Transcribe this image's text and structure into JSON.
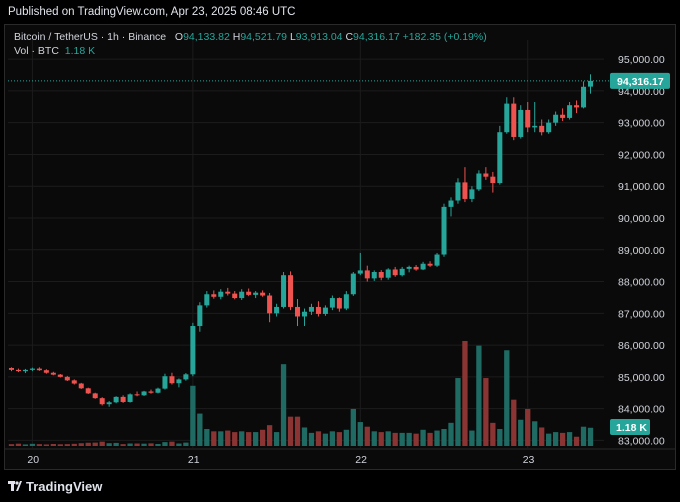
{
  "header": {
    "published": "Published on TradingView.com, Apr 23, 2025 08:46 UTC"
  },
  "legend": {
    "symbol": "Bitcoin / TetherUS · 1h · Binance",
    "o_label": "O",
    "o_value": "94,133.82",
    "h_label": "H",
    "h_value": "94,521.79",
    "l_label": "L",
    "l_value": "93,913.04",
    "c_label": "C",
    "c_value": "94,316.17",
    "change": "+182.35 (+0.19%)",
    "vol_label": "Vol · BTC",
    "vol_value": "1.18 K"
  },
  "footer": {
    "brand": "TradingView"
  },
  "colors": {
    "up": "#26a69a",
    "down": "#ef5350",
    "up_vol": "#1f6b63",
    "down_vol": "#8a3433",
    "bg": "#0a0a0a",
    "grid": "#1c1c1c"
  },
  "chart_data": {
    "type": "candlestick",
    "price_labels": [
      "95,000.00",
      "94,000.00",
      "93,000.00",
      "92,000.00",
      "91,000.00",
      "90,000.00",
      "89,000.00",
      "88,000.00",
      "87,000.00",
      "86,000.00",
      "85,000.00",
      "84,000.00",
      "83,000.00"
    ],
    "price_values": [
      95000,
      94000,
      93000,
      92000,
      91000,
      90000,
      89000,
      88000,
      87000,
      86000,
      85000,
      84000,
      83000
    ],
    "ylim": [
      82950,
      95350
    ],
    "x_labels": [
      "20",
      "21",
      "22",
      "23"
    ],
    "last_price_label": "94,316.17",
    "last_price": 94316.17,
    "last_volume_label": "1.18 K",
    "candles": [
      [
        85280,
        85300,
        85180,
        85220
      ],
      [
        85220,
        85260,
        85150,
        85180
      ],
      [
        85180,
        85250,
        85120,
        85220
      ],
      [
        85220,
        85290,
        85180,
        85260
      ],
      [
        85260,
        85300,
        85190,
        85210
      ],
      [
        85210,
        85240,
        85100,
        85130
      ],
      [
        85130,
        85160,
        85050,
        85070
      ],
      [
        85070,
        85090,
        84980,
        85000
      ],
      [
        85000,
        85030,
        84870,
        84890
      ],
      [
        84890,
        84920,
        84760,
        84790
      ],
      [
        84790,
        84810,
        84620,
        84640
      ],
      [
        84640,
        84660,
        84460,
        84480
      ],
      [
        84480,
        84500,
        84310,
        84330
      ],
      [
        84330,
        84360,
        84100,
        84140
      ],
      [
        84140,
        84240,
        84060,
        84200
      ],
      [
        84200,
        84390,
        84170,
        84370
      ],
      [
        84370,
        84420,
        84180,
        84210
      ],
      [
        84210,
        84480,
        84190,
        84450
      ],
      [
        84450,
        84540,
        84390,
        84420
      ],
      [
        84420,
        84560,
        84400,
        84540
      ],
      [
        84540,
        84600,
        84470,
        84500
      ],
      [
        84500,
        84660,
        84480,
        84630
      ],
      [
        84630,
        85100,
        84600,
        85020
      ],
      [
        85020,
        85130,
        84760,
        84800
      ],
      [
        84800,
        84950,
        84670,
        84920
      ],
      [
        84920,
        85120,
        84880,
        85080
      ],
      [
        85080,
        86700,
        85020,
        86600
      ],
      [
        86600,
        87350,
        86420,
        87250
      ],
      [
        87250,
        87700,
        87180,
        87600
      ],
      [
        87600,
        87720,
        87460,
        87520
      ],
      [
        87520,
        87760,
        87440,
        87680
      ],
      [
        87680,
        87800,
        87560,
        87620
      ],
      [
        87620,
        87700,
        87440,
        87480
      ],
      [
        87480,
        87760,
        87420,
        87680
      ],
      [
        87680,
        87780,
        87540,
        87580
      ],
      [
        87580,
        87700,
        87480,
        87650
      ],
      [
        87650,
        87720,
        87520,
        87560
      ],
      [
        87560,
        87640,
        86720,
        87000
      ],
      [
        87000,
        87300,
        86900,
        87200
      ],
      [
        87200,
        88300,
        87150,
        88200
      ],
      [
        88200,
        88320,
        87100,
        87200
      ],
      [
        87200,
        87450,
        86600,
        86900
      ],
      [
        86900,
        87150,
        86600,
        87050
      ],
      [
        87050,
        87300,
        86950,
        87200
      ],
      [
        87200,
        87380,
        86900,
        86980
      ],
      [
        86980,
        87250,
        86920,
        87180
      ],
      [
        87180,
        87560,
        87100,
        87480
      ],
      [
        87480,
        87500,
        87050,
        87150
      ],
      [
        87150,
        87700,
        87100,
        87600
      ],
      [
        87600,
        88300,
        87550,
        88250
      ],
      [
        88250,
        88900,
        88200,
        88350
      ],
      [
        88350,
        88500,
        88000,
        88100
      ],
      [
        88100,
        88350,
        88020,
        88300
      ],
      [
        88300,
        88360,
        88040,
        88120
      ],
      [
        88120,
        88420,
        88060,
        88380
      ],
      [
        88380,
        88460,
        88150,
        88200
      ],
      [
        88200,
        88460,
        88160,
        88400
      ],
      [
        88400,
        88500,
        88290,
        88460
      ],
      [
        88460,
        88520,
        88340,
        88380
      ],
      [
        88380,
        88620,
        88360,
        88560
      ],
      [
        88560,
        88640,
        88460,
        88500
      ],
      [
        88500,
        88900,
        88460,
        88850
      ],
      [
        88850,
        90450,
        88780,
        90350
      ],
      [
        90350,
        90650,
        90050,
        90550
      ],
      [
        90550,
        91250,
        90450,
        91120
      ],
      [
        91120,
        91600,
        90500,
        90600
      ],
      [
        90600,
        91000,
        90500,
        90900
      ],
      [
        90900,
        91500,
        90850,
        91400
      ],
      [
        91400,
        91600,
        91200,
        91300
      ],
      [
        91300,
        91450,
        90800,
        91100
      ],
      [
        91100,
        92900,
        91050,
        92700
      ],
      [
        92700,
        93800,
        92650,
        93600
      ],
      [
        93600,
        93800,
        92450,
        92550
      ],
      [
        92550,
        93550,
        92500,
        93400
      ],
      [
        93400,
        93650,
        92700,
        92850
      ],
      [
        92850,
        93650,
        92700,
        92900
      ],
      [
        92900,
        93100,
        92600,
        92700
      ],
      [
        92700,
        93100,
        92650,
        93000
      ],
      [
        93000,
        93350,
        92900,
        93250
      ],
      [
        93250,
        93450,
        93050,
        93150
      ],
      [
        93150,
        93650,
        93100,
        93550
      ],
      [
        93550,
        93700,
        93300,
        93480
      ],
      [
        93480,
        94300,
        93450,
        94130
      ],
      [
        94133.82,
        94521.79,
        93913.04,
        94316.17
      ]
    ],
    "volumes": [
      0.12,
      0.15,
      0.1,
      0.14,
      0.12,
      0.1,
      0.13,
      0.11,
      0.12,
      0.14,
      0.18,
      0.21,
      0.22,
      0.28,
      0.18,
      0.2,
      0.12,
      0.16,
      0.16,
      0.15,
      0.17,
      0.13,
      0.25,
      0.28,
      0.16,
      0.22,
      3.9,
      2.1,
      1.1,
      0.95,
      0.95,
      1.0,
      0.9,
      0.95,
      0.9,
      0.9,
      1.05,
      1.35,
      0.9,
      5.3,
      1.9,
      1.9,
      1.2,
      0.85,
      0.95,
      0.8,
      0.95,
      0.9,
      1.05,
      2.4,
      1.55,
      1.25,
      0.95,
      0.9,
      0.95,
      0.85,
      0.85,
      0.85,
      0.8,
      1.05,
      0.85,
      1.0,
      1.1,
      1.5,
      4.4,
      6.8,
      1.0,
      6.5,
      4.4,
      1.5,
      1.1,
      6.2,
      3.0,
      1.7,
      2.4,
      1.6,
      1.2,
      0.8,
      0.9,
      0.85,
      0.9,
      0.6,
      1.25,
      1.18
    ],
    "vol_max": 6.8
  }
}
